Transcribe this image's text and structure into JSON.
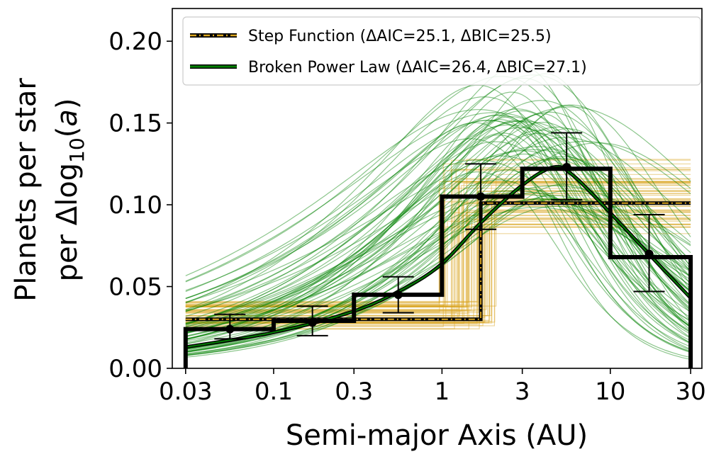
{
  "chart_data": {
    "type": "line",
    "xlabel": "Semi-major Axis (AU)",
    "ylabel_line1": "Planets per star",
    "ylabel_line2_prefix": "per Δlog",
    "ylabel_line2_sub": "10",
    "ylabel_line2_open": "(",
    "ylabel_line2_var": "a",
    "ylabel_line2_close": ")",
    "xscale": "log",
    "xlim": [
      0.025,
      35
    ],
    "ylim": [
      0.0,
      0.22
    ],
    "x_ticks": [
      0.03,
      0.1,
      0.3,
      1,
      3,
      10,
      30
    ],
    "x_tick_labels": [
      "0.03",
      "0.1",
      "0.3",
      "1",
      "3",
      "10",
      "30"
    ],
    "y_ticks": [
      0.0,
      0.05,
      0.1,
      0.15,
      0.2
    ],
    "y_tick_labels": [
      "0.00",
      "0.05",
      "0.10",
      "0.15",
      "0.20"
    ],
    "legend_position": "top",
    "series": [
      {
        "name": "Step Function (ΔAIC=25.1, ΔBIC=25.5)",
        "kind": "step",
        "color": "#daa520",
        "best_fit": {
          "low": 0.03,
          "high": 0.101,
          "break": 1.7
        }
      },
      {
        "name": "Broken Power Law (ΔAIC=26.4, ΔBIC=27.1)",
        "kind": "curve",
        "color": "#008000",
        "best_fit": {
          "x": [
            0.03,
            0.1,
            0.3,
            0.6,
            1,
            1.7,
            3,
            4.6,
            6,
            10,
            20,
            30
          ],
          "y": [
            0.013,
            0.022,
            0.035,
            0.049,
            0.064,
            0.089,
            0.112,
            0.123,
            0.118,
            0.095,
            0.062,
            0.043
          ]
        }
      }
    ],
    "histogram": {
      "bin_edges": [
        0.03,
        0.1,
        0.3,
        1,
        3,
        10,
        30
      ],
      "values": [
        0.024,
        0.029,
        0.045,
        0.105,
        0.122,
        0.068
      ]
    },
    "points": {
      "x": [
        0.055,
        0.17,
        0.55,
        1.7,
        5.5,
        17
      ],
      "y": [
        0.024,
        0.028,
        0.045,
        0.105,
        0.123,
        0.07
      ],
      "err_low": [
        0.006,
        0.008,
        0.011,
        0.02,
        0.02,
        0.023
      ],
      "err_high": [
        0.009,
        0.01,
        0.011,
        0.02,
        0.021,
        0.024
      ]
    }
  }
}
